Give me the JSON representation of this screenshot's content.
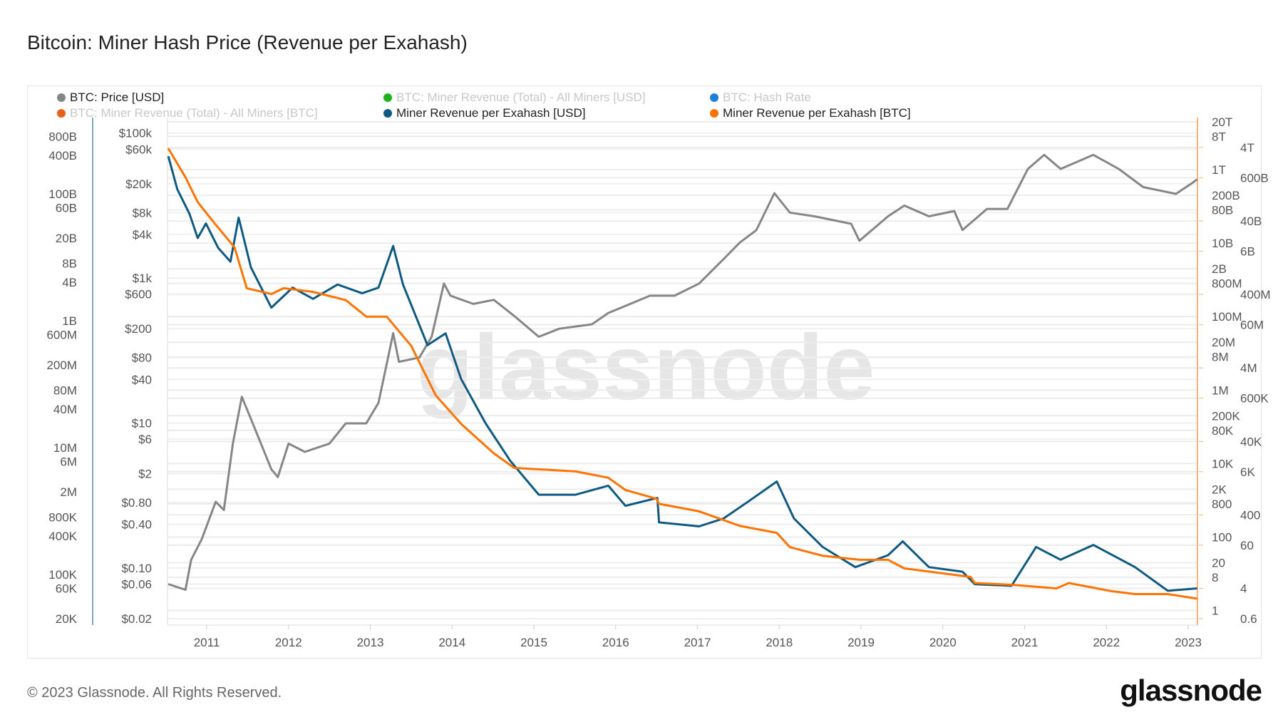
{
  "title": "Bitcoin: Miner Hash Price (Revenue per Exahash)",
  "footer": "© 2023 Glassnode. All Rights Reserved.",
  "logo": "glassnode",
  "watermark": "glassnode",
  "legend": [
    {
      "label": "BTC: Price [USD]",
      "color": "#868686",
      "active": true
    },
    {
      "label": "BTC: Miner Revenue (Total) - All Miners [USD]",
      "color": "#1fb21f",
      "active": false
    },
    {
      "label": "BTC: Hash Rate",
      "color": "#1d7fd8",
      "active": false
    },
    {
      "label": "BTC: Miner Revenue (Total) - All Miners [BTC]",
      "color": "#e6611a",
      "active": false
    },
    {
      "label": "Miner Revenue per Exahash [USD]",
      "color": "#0f5a80",
      "active": true
    },
    {
      "label": "Miner Revenue per Exahash [BTC]",
      "color": "#ff7300",
      "active": true
    }
  ],
  "chart_data": {
    "type": "line",
    "title": "Bitcoin: Miner Hash Price (Revenue per Exahash)",
    "x_ticks": [
      "2011",
      "2012",
      "2013",
      "2014",
      "2015",
      "2016",
      "2017",
      "2018",
      "2019",
      "2020",
      "2021",
      "2022",
      "2023"
    ],
    "xlim": [
      2010.53,
      2023.11
    ],
    "grid": true,
    "legend_position": "top",
    "axes": {
      "price": {
        "scale": "log",
        "ticks": [
          [
            "$100k",
            100000
          ],
          [
            "$60k",
            60000
          ],
          [
            "$20k",
            20000
          ],
          [
            "$8k",
            8000
          ],
          [
            "$4k",
            4000
          ],
          [
            "$1k",
            1000
          ],
          [
            "$600",
            600
          ],
          [
            "$200",
            200
          ],
          [
            "$80",
            80
          ],
          [
            "$40",
            40
          ],
          [
            "$10",
            10
          ],
          [
            "$6",
            6
          ],
          [
            "$2",
            2
          ],
          [
            "$0.80",
            0.8
          ],
          [
            "$0.40",
            0.4
          ],
          [
            "$0.10",
            0.1
          ],
          [
            "$0.06",
            0.06
          ],
          [
            "$0.02",
            0.02
          ]
        ]
      },
      "left": {
        "scale": "log",
        "ticks": [
          [
            "800B",
            800000000000.0
          ],
          [
            "400B",
            400000000000.0
          ],
          [
            "100B",
            100000000000.0
          ],
          [
            "60B",
            60000000000.0
          ],
          [
            "20B",
            20000000000.0
          ],
          [
            "8B",
            8000000000.0
          ],
          [
            "4B",
            4000000000.0
          ],
          [
            "1B",
            1000000000.0
          ],
          [
            "600M",
            600000000.0
          ],
          [
            "200M",
            200000000.0
          ],
          [
            "80M",
            80000000.0
          ],
          [
            "40M",
            40000000.0
          ],
          [
            "10M",
            10000000.0
          ],
          [
            "6M",
            6000000.0
          ],
          [
            "2M",
            2000000.0
          ],
          [
            "800K",
            800000.0
          ],
          [
            "400K",
            400000.0
          ],
          [
            "100K",
            100000.0
          ],
          [
            "60K",
            60000.0
          ],
          [
            "20K",
            20000.0
          ]
        ]
      },
      "right": {
        "scale": "log",
        "ticks": [
          [
            "20T",
            20000000000000.0
          ],
          [
            "8T",
            8000000000000.0
          ],
          [
            "4T",
            4000000000000.0
          ],
          [
            "1T",
            1000000000000.0
          ],
          [
            "600B",
            600000000000.0
          ],
          [
            "200B",
            200000000000.0
          ],
          [
            "80B",
            80000000000.0
          ],
          [
            "40B",
            40000000000.0
          ],
          [
            "10B",
            10000000000.0
          ],
          [
            "6B",
            6000000000.0
          ],
          [
            "2B",
            2000000000.0
          ],
          [
            "800M",
            800000000.0
          ],
          [
            "400M",
            400000000.0
          ],
          [
            "100M",
            100000000.0
          ],
          [
            "60M",
            60000000.0
          ],
          [
            "20M",
            20000000.0
          ],
          [
            "8M",
            8000000.0
          ],
          [
            "4M",
            4000000.0
          ],
          [
            "1M",
            1000000.0
          ],
          [
            "600K",
            600000.0
          ],
          [
            "200K",
            200000.0
          ],
          [
            "80K",
            80000.0
          ],
          [
            "40K",
            40000.0
          ],
          [
            "10K",
            10000.0
          ],
          [
            "6K",
            6000.0
          ],
          [
            "2K",
            2000.0
          ],
          [
            "800",
            800
          ],
          [
            "400",
            400
          ],
          [
            "100",
            100
          ],
          [
            "60",
            60
          ],
          [
            "20",
            20
          ],
          [
            "8",
            8
          ],
          [
            "4",
            4
          ],
          [
            "1",
            1
          ],
          [
            "0.6",
            0.6
          ]
        ]
      }
    },
    "series": [
      {
        "name": "BTC: Price [USD]",
        "axis": "price",
        "color": "#868686",
        "points": [
          [
            2010.53,
            0.06
          ],
          [
            2010.74,
            0.05
          ],
          [
            2010.81,
            0.13
          ],
          [
            2010.94,
            0.25
          ],
          [
            2011.11,
            0.82
          ],
          [
            2011.21,
            0.63
          ],
          [
            2011.32,
            5.2
          ],
          [
            2011.43,
            23
          ],
          [
            2011.59,
            8.3
          ],
          [
            2011.79,
            2.3
          ],
          [
            2011.87,
            1.8
          ],
          [
            2012.0,
            5.2
          ],
          [
            2012.2,
            4.0
          ],
          [
            2012.5,
            5.2
          ],
          [
            2012.7,
            9.9
          ],
          [
            2012.95,
            9.9
          ],
          [
            2013.1,
            19
          ],
          [
            2013.25,
            120
          ],
          [
            2013.28,
            174
          ],
          [
            2013.35,
            70
          ],
          [
            2013.6,
            80
          ],
          [
            2013.75,
            155
          ],
          [
            2013.9,
            840
          ],
          [
            2013.98,
            570
          ],
          [
            2014.26,
            440
          ],
          [
            2014.51,
            500
          ],
          [
            2014.76,
            300
          ],
          [
            2015.06,
            155
          ],
          [
            2015.31,
            200
          ],
          [
            2015.71,
            230
          ],
          [
            2015.91,
            330
          ],
          [
            2016.42,
            570
          ],
          [
            2016.72,
            570
          ],
          [
            2017.02,
            840
          ],
          [
            2017.32,
            1830
          ],
          [
            2017.52,
            3100
          ],
          [
            2017.72,
            4580
          ],
          [
            2017.94,
            14800
          ],
          [
            2018.13,
            8000
          ],
          [
            2018.43,
            7100
          ],
          [
            2018.88,
            5600
          ],
          [
            2018.98,
            3270
          ],
          [
            2019.33,
            7100
          ],
          [
            2019.53,
            10000
          ],
          [
            2019.83,
            7100
          ],
          [
            2020.14,
            8400
          ],
          [
            2020.24,
            4600
          ],
          [
            2020.54,
            9000
          ],
          [
            2020.79,
            9000
          ],
          [
            2021.04,
            32000
          ],
          [
            2021.24,
            50000
          ],
          [
            2021.44,
            32000
          ],
          [
            2021.84,
            50000
          ],
          [
            2022.15,
            32000
          ],
          [
            2022.45,
            18000
          ],
          [
            2022.85,
            14500
          ],
          [
            2023.05,
            20500
          ],
          [
            2023.11,
            23000
          ]
        ]
      },
      {
        "name": "Miner Revenue per Exahash [USD]",
        "axis": "left",
        "color": "#0f5a80",
        "points": [
          [
            2010.53,
            390000000000.0
          ],
          [
            2010.64,
            118000000000.0
          ],
          [
            2010.79,
            48000000000.0
          ],
          [
            2010.89,
            20000000000.0
          ],
          [
            2010.99,
            34000000000.0
          ],
          [
            2011.14,
            14000000000.0
          ],
          [
            2011.29,
            8500000000.0
          ],
          [
            2011.39,
            42000000000.0
          ],
          [
            2011.54,
            6900000000.0
          ],
          [
            2011.79,
            1600000000.0
          ],
          [
            2012.05,
            3300000000.0
          ],
          [
            2012.3,
            2200000000.0
          ],
          [
            2012.6,
            3700000000.0
          ],
          [
            2012.9,
            2700000000.0
          ],
          [
            2013.1,
            3300000000.0
          ],
          [
            2013.28,
            15000000000.0
          ],
          [
            2013.4,
            3700000000.0
          ],
          [
            2013.7,
            410000000.0
          ],
          [
            2013.92,
            630000000.0
          ],
          [
            2014.11,
            120000000.0
          ],
          [
            2014.41,
            24000000.0
          ],
          [
            2014.71,
            6200000.0
          ],
          [
            2015.06,
            1800000.0
          ],
          [
            2015.51,
            1800000.0
          ],
          [
            2015.91,
            2500000.0
          ],
          [
            2016.12,
            1200000.0
          ],
          [
            2016.51,
            1600000.0
          ],
          [
            2016.53,
            660000.0
          ],
          [
            2017.02,
            570000.0
          ],
          [
            2017.32,
            760000.0
          ],
          [
            2017.62,
            1400000.0
          ],
          [
            2017.97,
            2900000.0
          ],
          [
            2018.18,
            760000.0
          ],
          [
            2018.53,
            270000.0
          ],
          [
            2018.93,
            130000.0
          ],
          [
            2019.33,
            200000.0
          ],
          [
            2019.51,
            330000.0
          ],
          [
            2019.83,
            130000.0
          ],
          [
            2020.24,
            110000.0
          ],
          [
            2020.39,
            70000.0
          ],
          [
            2020.84,
            66000.0
          ],
          [
            2021.14,
            270000.0
          ],
          [
            2021.44,
            170000.0
          ],
          [
            2021.84,
            290000.0
          ],
          [
            2022.35,
            130000.0
          ],
          [
            2022.75,
            55000.0
          ],
          [
            2023.11,
            60000.0
          ]
        ]
      },
      {
        "name": "Miner Revenue per Exahash [BTC]",
        "axis": "right",
        "color": "#ff7300",
        "points": [
          [
            2010.53,
            3800000000000.0
          ],
          [
            2010.74,
            620000000000.0
          ],
          [
            2010.89,
            130000000000.0
          ],
          [
            2011.09,
            36000000000.0
          ],
          [
            2011.34,
            7700000000.0
          ],
          [
            2011.49,
            590000000.0
          ],
          [
            2011.79,
            410000000.0
          ],
          [
            2011.94,
            590000000.0
          ],
          [
            2012.3,
            470000000.0
          ],
          [
            2012.7,
            280000000.0
          ],
          [
            2012.95,
            100000000.0
          ],
          [
            2013.2,
            100000000.0
          ],
          [
            2013.5,
            16000000.0
          ],
          [
            2013.8,
            720000.0
          ],
          [
            2014.11,
            120000.0
          ],
          [
            2014.51,
            19000.0
          ],
          [
            2014.76,
            7600.0
          ],
          [
            2015.51,
            6100.0
          ],
          [
            2015.91,
            4100.0
          ],
          [
            2016.12,
            1900.0
          ],
          [
            2016.5,
            1100.0
          ],
          [
            2016.53,
            800
          ],
          [
            2017.02,
            500
          ],
          [
            2017.52,
            200
          ],
          [
            2017.97,
            130
          ],
          [
            2018.13,
            53
          ],
          [
            2018.53,
            31
          ],
          [
            2018.98,
            24
          ],
          [
            2019.33,
            24
          ],
          [
            2019.53,
            14
          ],
          [
            2020.34,
            8.2
          ],
          [
            2020.39,
            5.6
          ],
          [
            2020.84,
            5.0
          ],
          [
            2021.39,
            4.0
          ],
          [
            2021.54,
            5.6
          ],
          [
            2022.05,
            3.4
          ],
          [
            2022.35,
            2.8
          ],
          [
            2022.75,
            2.8
          ],
          [
            2023.11,
            2.1
          ]
        ]
      }
    ]
  }
}
